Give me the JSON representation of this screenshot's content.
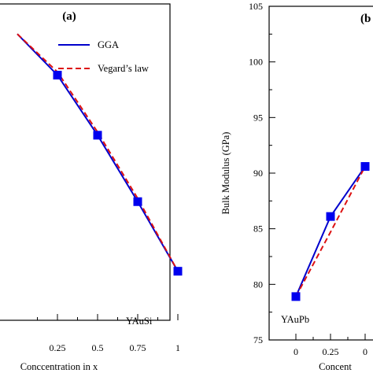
{
  "chart_data": [
    {
      "type": "line",
      "panel_label": "(a)",
      "xlabel": "Conccentration in x",
      "x_ticks": [
        "0.25",
        "0.5",
        "0.75",
        "1"
      ],
      "legend": [
        "GGA",
        "Vegard’s law"
      ],
      "legend_position": "top-right",
      "annotation": "YAuSi",
      "x": [
        0.0,
        0.25,
        0.5,
        0.75,
        1.0
      ],
      "series": [
        {
          "name": "GGA",
          "style": "solid",
          "color": "#0000cc",
          "markers": true,
          "values": [
            0.905,
            0.775,
            0.585,
            0.375,
            0.155
          ]
        },
        {
          "name": "Vegard’s law",
          "style": "dashed",
          "color": "#dd1111",
          "markers": false,
          "values": [
            0.905,
            0.785,
            0.595,
            0.385,
            0.155
          ]
        }
      ]
    },
    {
      "type": "line",
      "panel_label": "(b",
      "xlabel": "Concent",
      "ylabel": "Bulk Modulus (GPa)",
      "ylim": [
        75,
        105
      ],
      "y_ticks": [
        "75",
        "80",
        "85",
        "90",
        "95",
        "100",
        "105"
      ],
      "x_ticks": [
        "0",
        "0.25",
        "0"
      ],
      "annotation": "YAuPb",
      "x": [
        0.0,
        0.25,
        0.5
      ],
      "series": [
        {
          "name": "GGA",
          "style": "solid",
          "color": "#0000cc",
          "markers": true,
          "values": [
            78.9,
            86.1,
            90.6
          ]
        },
        {
          "name": "Vegard’s law",
          "style": "dashed",
          "color": "#dd1111",
          "markers": false,
          "values": [
            78.9,
            84.7,
            90.6
          ]
        }
      ]
    }
  ]
}
